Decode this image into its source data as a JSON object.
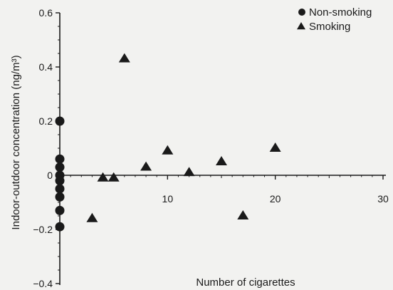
{
  "chart_data": {
    "type": "scatter",
    "xlabel": "Number of cigarettes",
    "ylabel": "Indoor-outdoor concentration (ng/m³)",
    "xlim": [
      0,
      30
    ],
    "ylim": [
      -0.4,
      0.6
    ],
    "x_ticks": [
      10,
      20,
      30
    ],
    "x_tick_labels": [
      "10",
      "20",
      "30"
    ],
    "y_ticks": [
      0.6,
      0.4,
      0.2,
      0,
      -0.2,
      -0.4
    ],
    "y_tick_labels": [
      "0.6",
      "0.4",
      "0.2",
      "0",
      "−0.2",
      "−0.4"
    ],
    "grid": false,
    "legend_position": "top-right",
    "series": [
      {
        "name": "Non-smoking",
        "marker": "circle",
        "color": "#1a1a1a",
        "points": [
          {
            "x": 0,
            "y": 0.2
          },
          {
            "x": 0,
            "y": 0.06
          },
          {
            "x": 0,
            "y": 0.03
          },
          {
            "x": 0,
            "y": 0.0
          },
          {
            "x": 0,
            "y": -0.02
          },
          {
            "x": 0,
            "y": -0.05
          },
          {
            "x": 0,
            "y": -0.08
          },
          {
            "x": 0,
            "y": -0.13
          },
          {
            "x": 0,
            "y": -0.19
          }
        ]
      },
      {
        "name": "Smoking",
        "marker": "triangle",
        "color": "#1a1a1a",
        "points": [
          {
            "x": 3,
            "y": -0.16
          },
          {
            "x": 4,
            "y": -0.01
          },
          {
            "x": 5,
            "y": -0.01
          },
          {
            "x": 6,
            "y": 0.43
          },
          {
            "x": 8,
            "y": 0.03
          },
          {
            "x": 10,
            "y": 0.09
          },
          {
            "x": 12,
            "y": 0.01
          },
          {
            "x": 15,
            "y": 0.05
          },
          {
            "x": 17,
            "y": -0.15
          },
          {
            "x": 20,
            "y": 0.1
          }
        ]
      }
    ]
  }
}
